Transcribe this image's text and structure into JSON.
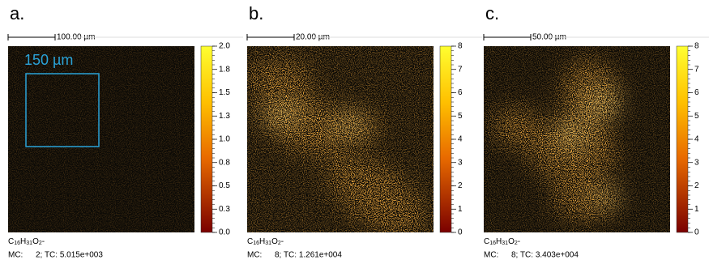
{
  "panels": [
    {
      "label": "a.",
      "scale_bar": "100.00 µm",
      "annotation": "150 µm",
      "colorbar_ticks": [
        "2.0",
        "1.8",
        "1.5",
        "1.3",
        "1.0",
        "0.8",
        "0.5",
        "0.3",
        "0.0"
      ],
      "formula": [
        "C",
        "16",
        "H",
        "31",
        "O",
        "2",
        "-"
      ],
      "mc_label": "MC:",
      "mc_value": "2; TC: 5.015e+003"
    },
    {
      "label": "b.",
      "scale_bar": "20.00 µm",
      "colorbar_ticks": [
        "8",
        "7",
        "6",
        "5",
        "4",
        "3",
        "2",
        "1",
        "0"
      ],
      "formula": [
        "C",
        "16",
        "H",
        "31",
        "O",
        "2",
        "-"
      ],
      "mc_label": "MC:",
      "mc_value": "8; TC: 1.261e+004"
    },
    {
      "label": "c.",
      "scale_bar": "50.00 µm",
      "colorbar_ticks": [
        "8",
        "7",
        "6",
        "5",
        "4",
        "3",
        "2",
        "1",
        "0"
      ],
      "formula": [
        "C",
        "16",
        "H",
        "31",
        "O",
        "2",
        "-"
      ],
      "mc_label": "MC:",
      "mc_value": "8; TC: 3.403e+004"
    }
  ]
}
